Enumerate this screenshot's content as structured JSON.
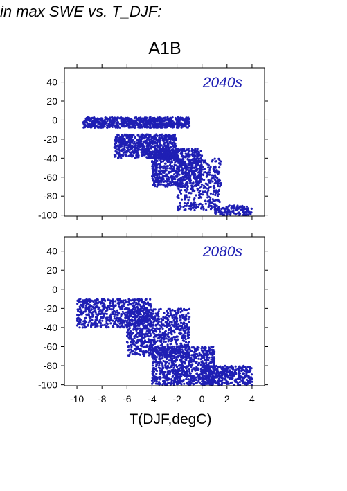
{
  "header": {
    "text": "in max SWE vs. T_DJF:"
  },
  "scenario_title": "A1B",
  "x_axis": {
    "label": "T(DJF,degC)",
    "ticks": [
      "-10",
      "-8",
      "-6",
      "-4",
      "-2",
      "0",
      "2",
      "4"
    ]
  },
  "y_axis": {
    "ticks": [
      "40",
      "20",
      "0",
      "-20",
      "-40",
      "-60",
      "-80",
      "-100"
    ]
  },
  "colors": {
    "points": "#1f1fb4",
    "axes": "#000000",
    "panel_label": "#1f1fb4"
  },
  "chart_data": [
    {
      "type": "scatter",
      "panel_label": "2040s",
      "xlabel": "",
      "ylabel": "",
      "xlim": [
        -11,
        5
      ],
      "ylim": [
        -101,
        55
      ],
      "grid": false,
      "series": [
        {
          "description": "dense cloud of several thousand points",
          "clusters": [
            {
              "x": [
                -9.5,
                -1
              ],
              "y": [
                -8,
                3
              ],
              "weight": 0.3
            },
            {
              "x": [
                -7,
                -2
              ],
              "y": [
                -40,
                -15
              ],
              "weight": 0.25
            },
            {
              "x": [
                -4,
                0
              ],
              "y": [
                -70,
                -30
              ],
              "weight": 0.25
            },
            {
              "x": [
                -2,
                1.5
              ],
              "y": [
                -95,
                -40
              ],
              "weight": 0.15
            },
            {
              "x": [
                1,
                4
              ],
              "y": [
                -100,
                -90
              ],
              "weight": 0.05
            }
          ],
          "x_range": [
            -11,
            4
          ],
          "y_range": [
            -100,
            18
          ]
        }
      ]
    },
    {
      "type": "scatter",
      "panel_label": "2080s",
      "xlabel": "T(DJF,degC)",
      "ylabel": "",
      "xlim": [
        -11,
        5
      ],
      "ylim": [
        -101,
        55
      ],
      "grid": false,
      "series": [
        {
          "description": "dense cloud of several thousand points",
          "clusters": [
            {
              "x": [
                -10,
                -4
              ],
              "y": [
                -40,
                -10
              ],
              "weight": 0.25
            },
            {
              "x": [
                -6,
                -1
              ],
              "y": [
                -70,
                -20
              ],
              "weight": 0.3
            },
            {
              "x": [
                -4,
                1
              ],
              "y": [
                -100,
                -60
              ],
              "weight": 0.3
            },
            {
              "x": [
                0,
                4
              ],
              "y": [
                -100,
                -80
              ],
              "weight": 0.15
            }
          ],
          "x_range": [
            -11,
            4
          ],
          "y_range": [
            -100,
            18
          ]
        }
      ]
    }
  ]
}
